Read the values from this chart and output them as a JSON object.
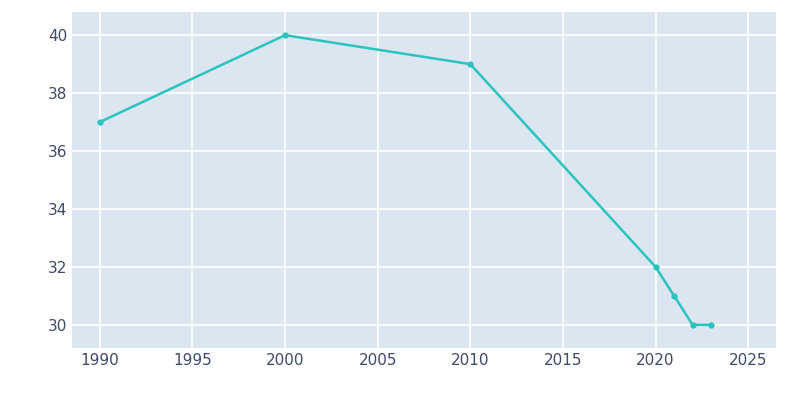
{
  "years": [
    1990,
    2000,
    2010,
    2020,
    2021,
    2022,
    2023
  ],
  "population": [
    37,
    40,
    39,
    32,
    31,
    30,
    30
  ],
  "line_color": "#2ac4bf",
  "bg_color": "#dce6f0",
  "plot_bg_color": "#dce6f0",
  "outer_bg_color": "#ffffff",
  "grid_color": "#ffffff",
  "tick_color": "#3d4a6b",
  "xlim": [
    1988.5,
    2026.5
  ],
  "ylim": [
    29.2,
    40.8
  ],
  "xticks": [
    1990,
    1995,
    2000,
    2005,
    2010,
    2015,
    2020,
    2025
  ],
  "yticks": [
    30,
    32,
    34,
    36,
    38,
    40
  ],
  "linewidth": 1.8,
  "markersize": 3.5,
  "tick_fontsize": 11
}
